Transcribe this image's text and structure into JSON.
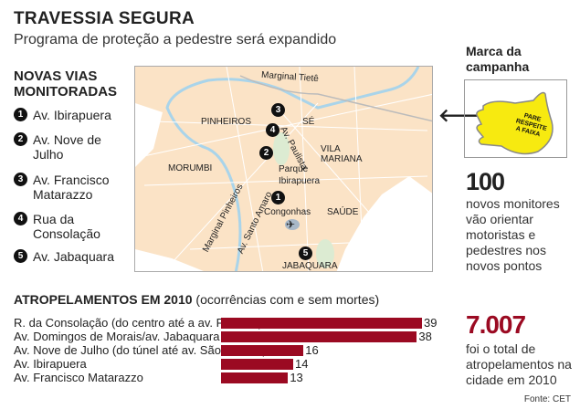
{
  "header": {
    "title": "TRAVESSIA SEGURA",
    "subtitle": "Programa de proteção a pedestre será expandido"
  },
  "list": {
    "title_line1": "NOVAS VIAS",
    "title_line2": "MONITORADAS",
    "items": [
      {
        "n": "1",
        "l1": "Av. Ibirapuera",
        "l2": ""
      },
      {
        "n": "2",
        "l1": "Av. Nove de",
        "l2": "Julho"
      },
      {
        "n": "3",
        "l1": "Av. Francisco",
        "l2": "Matarazzo"
      },
      {
        "n": "4",
        "l1": "Rua da",
        "l2": "Consolação"
      },
      {
        "n": "5",
        "l1": "Av. Jabaquara",
        "l2": ""
      }
    ]
  },
  "map": {
    "labels": {
      "tiete": "Marginal Tietê",
      "pinheiros": "PINHEIROS",
      "se": "SÉ",
      "paulista": "Av. Paulista",
      "vila1": "VILA",
      "vila2": "MARIANA",
      "morumbi": "MORUMBI",
      "parque1": "Parque",
      "parque2": "Ibirapuera",
      "congonhas": "Congonhas",
      "saude": "SAÚDE",
      "mpinheiros": "Marginal Pinheiros",
      "santoamaro": "Av. Santo Amaro",
      "jabaquara": "JABAQUARA"
    },
    "markers": [
      "1",
      "2",
      "3",
      "4",
      "5"
    ],
    "icons": [
      "airplane-icon"
    ],
    "colors": {
      "land": "#fbe3c6",
      "river": "#a9d4ea",
      "park": "#dcebd2",
      "road": "#ffffff"
    }
  },
  "campaign": {
    "title1": "Marca da",
    "title2": "campanha",
    "hand_text1": "PARE",
    "hand_text2": "RESPEITE",
    "hand_text3": "A FAIXA",
    "hand_color": "#f7ea10"
  },
  "monitors": {
    "value": "100",
    "text": [
      "novos monitores",
      "vão orientar",
      "motoristas e",
      "pedestres nos",
      "novos pontos"
    ]
  },
  "chart_data": {
    "type": "bar",
    "orientation": "horizontal",
    "title": "ATROPELAMENTOS EM 2010",
    "subtitle": "(ocorrências com e sem mortes)",
    "categories": [
      "R. da Consolação (do centro até a av. Paulista)",
      "Av. Domingos de Morais/av. Jabaquara",
      "Av. Nove de Julho (do túnel até av. São Gabriel)",
      "Av. Ibirapuera",
      "Av. Francisco Matarazzo"
    ],
    "values": [
      39,
      38,
      16,
      14,
      13
    ],
    "color": "#9b0a22",
    "grid": false
  },
  "total": {
    "value": "7.007",
    "text": [
      "foi o total de",
      "atropelamentos na",
      "cidade em 2010"
    ]
  },
  "source": "Fonte: CET"
}
